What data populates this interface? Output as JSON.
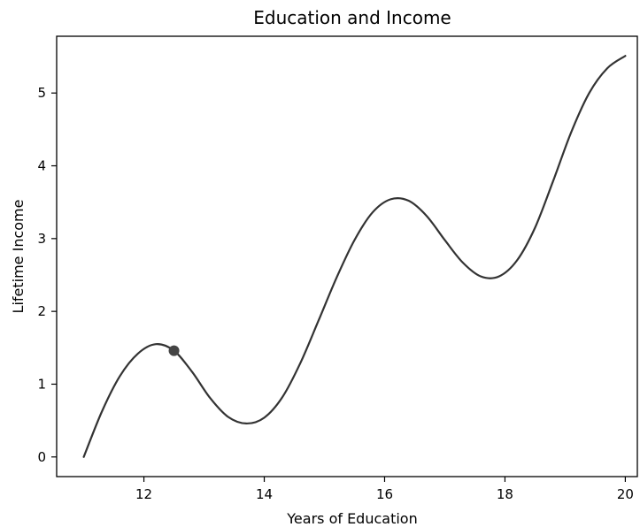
{
  "chart_data": {
    "type": "line",
    "title": "Education and Income",
    "xlabel": "Years of Education",
    "ylabel": "Lifetime Income",
    "xlim": [
      10.55,
      20.2
    ],
    "ylim": [
      -0.27,
      5.78
    ],
    "xticks": [
      12,
      14,
      16,
      18,
      20
    ],
    "yticks": [
      0,
      1,
      2,
      3,
      4,
      5
    ],
    "grid": false,
    "legend": "none",
    "series": [
      {
        "color": "#333333",
        "points": [
          [
            11.0,
            0.0
          ],
          [
            11.3,
            0.62
          ],
          [
            11.6,
            1.11
          ],
          [
            11.9,
            1.42
          ],
          [
            12.2,
            1.55
          ],
          [
            12.5,
            1.46
          ],
          [
            12.8,
            1.17
          ],
          [
            13.1,
            0.81
          ],
          [
            13.4,
            0.55
          ],
          [
            13.7,
            0.46
          ],
          [
            14.0,
            0.54
          ],
          [
            14.3,
            0.82
          ],
          [
            14.6,
            1.29
          ],
          [
            14.9,
            1.87
          ],
          [
            15.2,
            2.46
          ],
          [
            15.5,
            2.98
          ],
          [
            15.8,
            3.36
          ],
          [
            16.1,
            3.54
          ],
          [
            16.4,
            3.52
          ],
          [
            16.7,
            3.31
          ],
          [
            17.0,
            2.98
          ],
          [
            17.3,
            2.67
          ],
          [
            17.6,
            2.48
          ],
          [
            17.9,
            2.48
          ],
          [
            18.2,
            2.7
          ],
          [
            18.5,
            3.15
          ],
          [
            18.8,
            3.79
          ],
          [
            19.1,
            4.46
          ],
          [
            19.4,
            5.0
          ],
          [
            19.7,
            5.34
          ],
          [
            20.0,
            5.51
          ]
        ]
      }
    ],
    "highlight_point": {
      "x": 12.5,
      "y": 1.46,
      "color": "#444444"
    }
  }
}
